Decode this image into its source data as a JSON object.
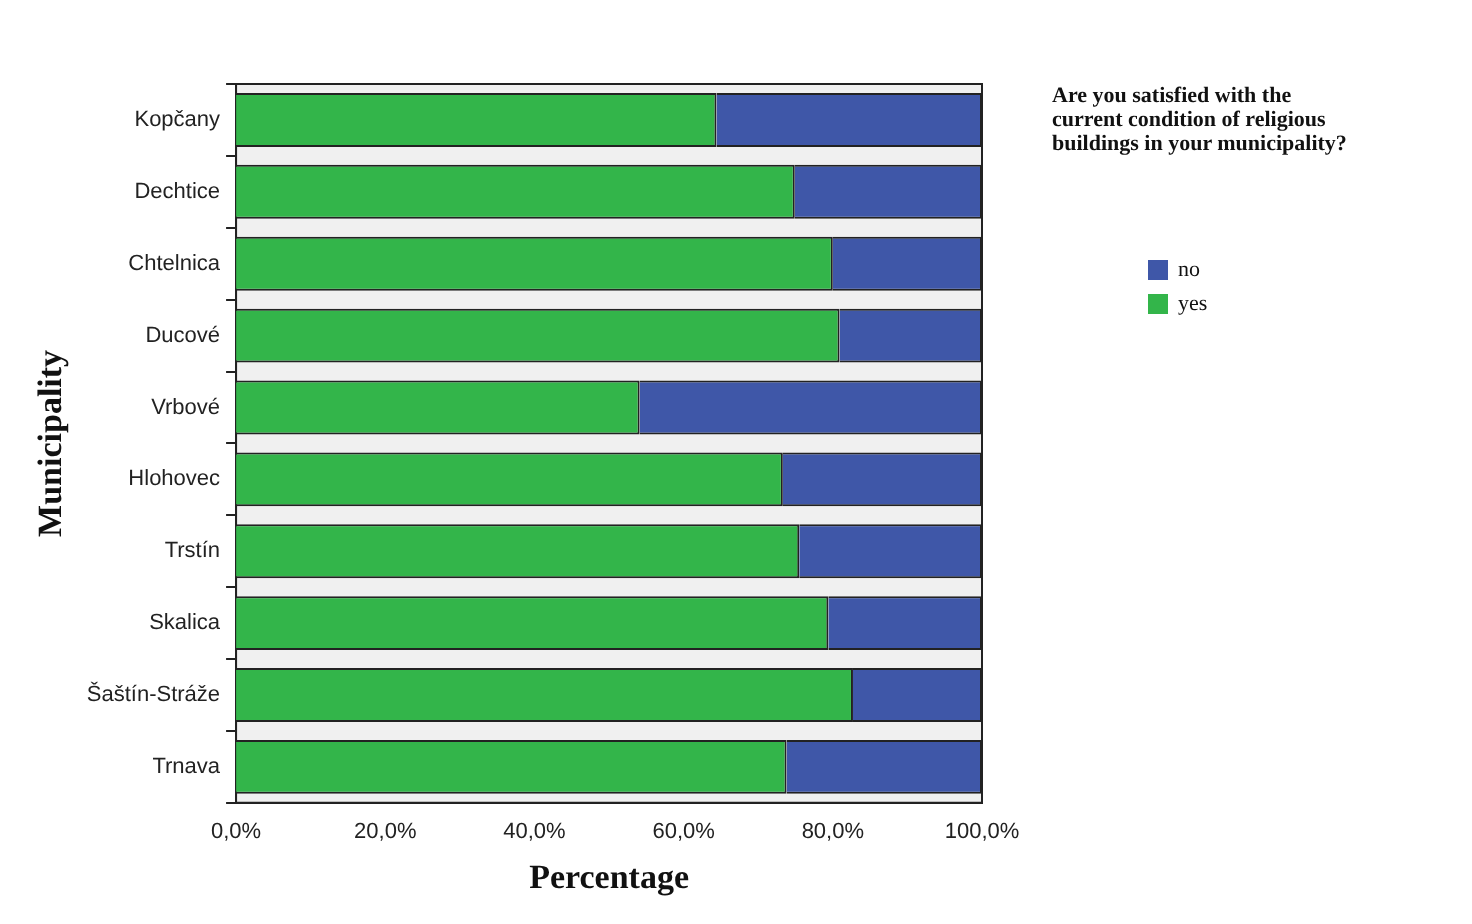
{
  "chart_data": {
    "type": "bar",
    "orientation": "horizontal",
    "stacked": true,
    "xlabel": "Percentage",
    "ylabel": "Municipality",
    "legend_title": "Are you satisfied with the current condition of religious buildings in your municipality?",
    "legend": "right",
    "categories": [
      "Kopčany",
      "Dechtice",
      "Chtelnica",
      "Ducové",
      "Vrbové",
      "Hlohovec",
      "Trstín",
      "Skalica",
      "Šaštín-Stráže",
      "Trnava"
    ],
    "series": [
      {
        "name": "yes",
        "color": "#33b54a",
        "values": [
          64.4,
          74.9,
          80.0,
          80.9,
          54.1,
          73.3,
          75.5,
          79.4,
          82.7,
          73.8
        ]
      },
      {
        "name": "no",
        "color": "#3f57a8",
        "values": [
          35.6,
          25.1,
          20.0,
          19.1,
          45.9,
          26.7,
          24.5,
          20.6,
          17.3,
          26.2
        ]
      }
    ],
    "xlim": [
      0,
      100
    ],
    "xticks": [
      {
        "value": 0,
        "label": "0,0%"
      },
      {
        "value": 20,
        "label": "20,0%"
      },
      {
        "value": 40,
        "label": "40,0%"
      },
      {
        "value": 60,
        "label": "60,0%"
      },
      {
        "value": 80,
        "label": "80,0%"
      },
      {
        "value": 100,
        "label": "100,0%"
      }
    ],
    "grid": false
  }
}
